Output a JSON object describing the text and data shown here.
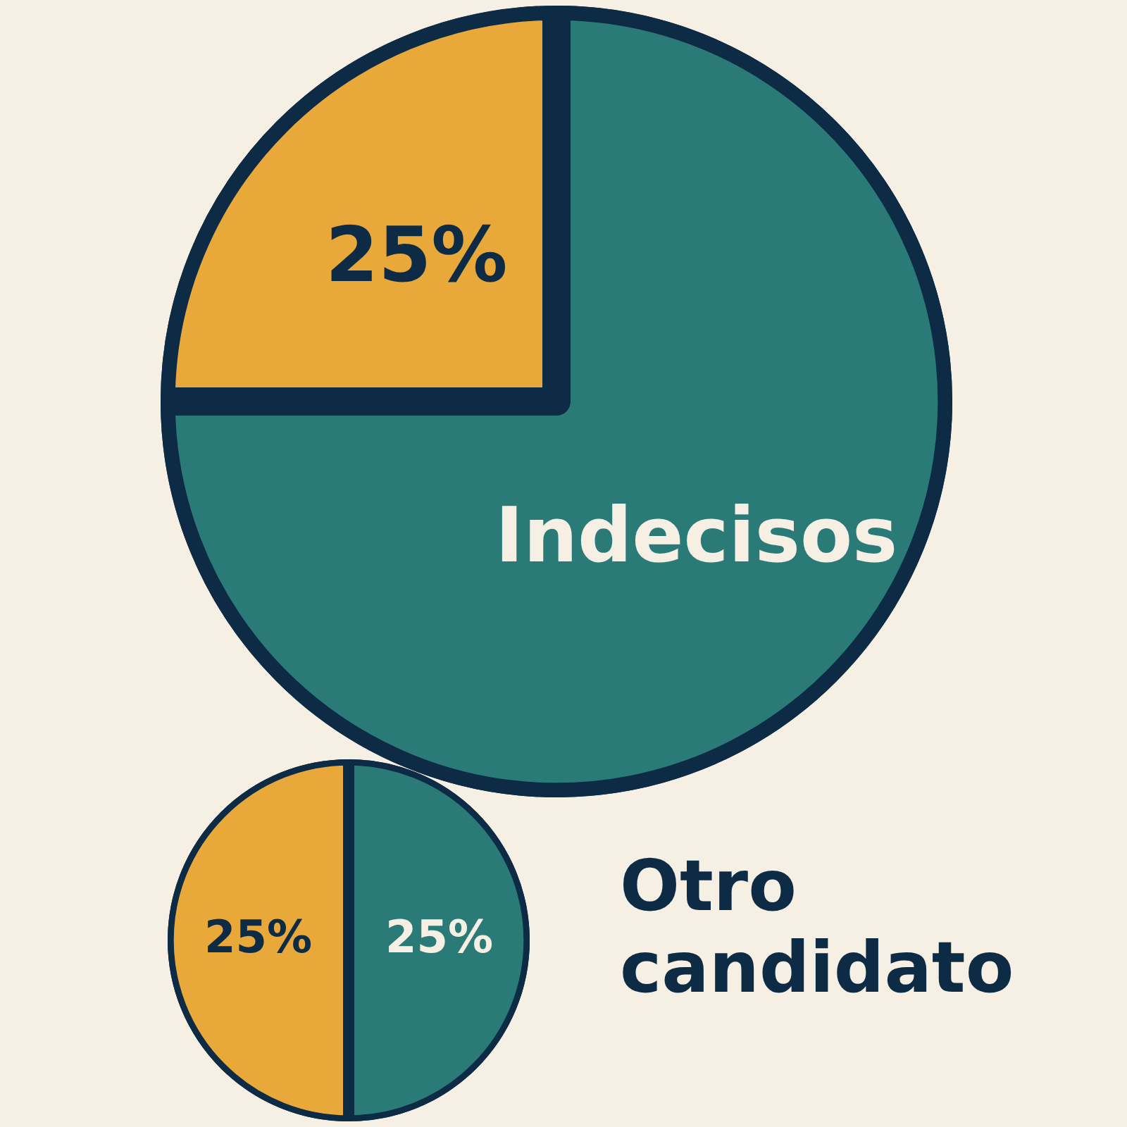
{
  "chart_data": [
    {
      "type": "pie",
      "categories": [
        "Indecisos",
        null
      ],
      "values": [
        75,
        25
      ],
      "colors": [
        "#2a7a78",
        "#e8a93a"
      ],
      "value_labels": [
        null,
        "25%"
      ],
      "legend": false
    },
    {
      "type": "pie",
      "title": "Otro candidato",
      "categories": [
        null,
        null
      ],
      "values": [
        25,
        25
      ],
      "colors": [
        "#2a7a78",
        "#e8a93a"
      ],
      "value_labels": [
        "25%",
        "25%"
      ],
      "legend": false
    }
  ]
}
